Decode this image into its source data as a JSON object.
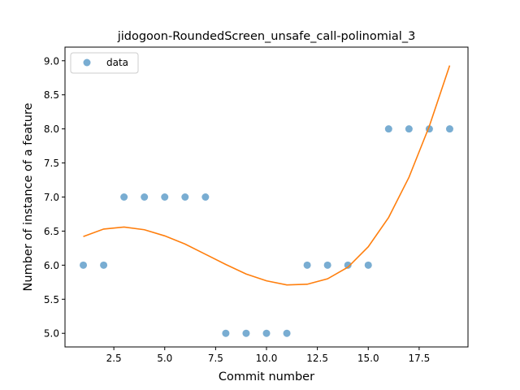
{
  "chart_data": {
    "type": "scatter",
    "title": "jidogoon-RoundedScreen_unsafe_call-polinomial_3",
    "xlabel": "Commit number",
    "ylabel": "Number of instance of a feature",
    "xlim": [
      0.1,
      19.9
    ],
    "ylim": [
      4.8,
      9.2
    ],
    "xticks": [
      2.5,
      5.0,
      7.5,
      10.0,
      12.5,
      15.0,
      17.5
    ],
    "xtick_labels": [
      "2.5",
      "5.0",
      "7.5",
      "10.0",
      "12.5",
      "15.0",
      "17.5"
    ],
    "yticks": [
      5.0,
      5.5,
      6.0,
      6.5,
      7.0,
      7.5,
      8.0,
      8.5,
      9.0
    ],
    "ytick_labels": [
      "5.0",
      "5.5",
      "6.0",
      "6.5",
      "7.0",
      "7.5",
      "8.0",
      "8.5",
      "9.0"
    ],
    "grid": false,
    "legend_position": "top-left",
    "series": [
      {
        "name": "data",
        "kind": "scatter",
        "color": "#5b9bd5",
        "x": [
          1,
          2,
          3,
          4,
          5,
          6,
          7,
          8,
          9,
          10,
          11,
          12,
          13,
          14,
          15,
          16,
          17,
          18,
          19
        ],
        "y": [
          6,
          6,
          7,
          7,
          7,
          7,
          7,
          5,
          5,
          5,
          5,
          6,
          6,
          6,
          6,
          8,
          8,
          8,
          8
        ]
      },
      {
        "kind": "line",
        "color": "#ff7f0e",
        "x": [
          1,
          2,
          3,
          4,
          5,
          6,
          7,
          8,
          9,
          10,
          11,
          12,
          13,
          14,
          15,
          16,
          17,
          18,
          19
        ],
        "y": [
          6.42,
          6.53,
          6.56,
          6.52,
          6.43,
          6.31,
          6.16,
          6.01,
          5.87,
          5.77,
          5.71,
          5.72,
          5.8,
          5.97,
          6.27,
          6.7,
          7.29,
          8.04,
          8.93
        ]
      }
    ]
  }
}
